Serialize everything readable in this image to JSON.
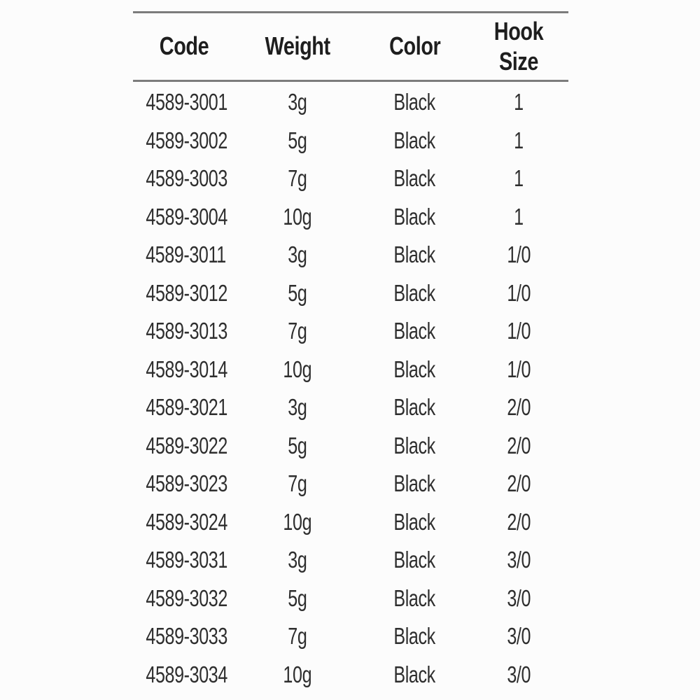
{
  "page": {
    "background": "#fcfcfc"
  },
  "colors": {
    "rule": "#7c7c7c",
    "header_text": "#1e1e1e",
    "row_text": "#2e2e2e",
    "background": "#fcfcfc"
  },
  "table": {
    "columns": [
      {
        "key": "code",
        "label": "Code"
      },
      {
        "key": "weight",
        "label": "Weight"
      },
      {
        "key": "color",
        "label": "Color"
      },
      {
        "key": "hook_size",
        "label": "Hook Size"
      }
    ],
    "rows": [
      {
        "code": "4589-3001",
        "weight": "3g",
        "color": "Black",
        "hook_size": "1"
      },
      {
        "code": "4589-3002",
        "weight": "5g",
        "color": "Black",
        "hook_size": "1"
      },
      {
        "code": "4589-3003",
        "weight": "7g",
        "color": "Black",
        "hook_size": "1"
      },
      {
        "code": "4589-3004",
        "weight": "10g",
        "color": "Black",
        "hook_size": "1"
      },
      {
        "code": "4589-3011",
        "weight": "3g",
        "color": "Black",
        "hook_size": "1/0"
      },
      {
        "code": "4589-3012",
        "weight": "5g",
        "color": "Black",
        "hook_size": "1/0"
      },
      {
        "code": "4589-3013",
        "weight": "7g",
        "color": "Black",
        "hook_size": "1/0"
      },
      {
        "code": "4589-3014",
        "weight": "10g",
        "color": "Black",
        "hook_size": "1/0"
      },
      {
        "code": "4589-3021",
        "weight": "3g",
        "color": "Black",
        "hook_size": "2/0"
      },
      {
        "code": "4589-3022",
        "weight": "5g",
        "color": "Black",
        "hook_size": "2/0"
      },
      {
        "code": "4589-3023",
        "weight": "7g",
        "color": "Black",
        "hook_size": "2/0"
      },
      {
        "code": "4589-3024",
        "weight": "10g",
        "color": "Black",
        "hook_size": "2/0"
      },
      {
        "code": "4589-3031",
        "weight": "3g",
        "color": "Black",
        "hook_size": "3/0"
      },
      {
        "code": "4589-3032",
        "weight": "5g",
        "color": "Black",
        "hook_size": "3/0"
      },
      {
        "code": "4589-3033",
        "weight": "7g",
        "color": "Black",
        "hook_size": "3/0"
      },
      {
        "code": "4589-3034",
        "weight": "10g",
        "color": "Black",
        "hook_size": "3/0"
      }
    ]
  }
}
